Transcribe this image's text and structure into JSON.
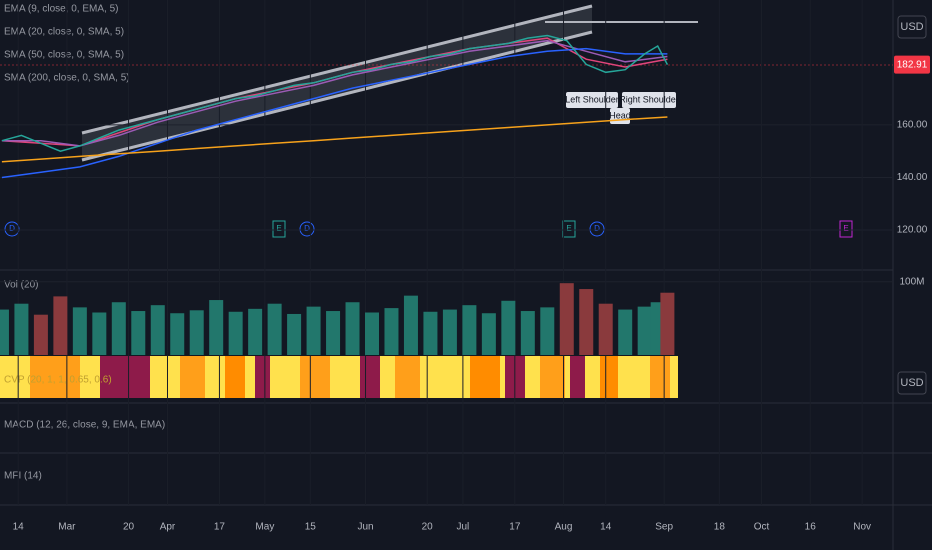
{
  "chart_data": {
    "type": "line",
    "indicator_labels": [
      "EMA (9, close, 0, EMA, 5)",
      "EMA (20, close, 0, SMA, 5)",
      "SMA (50, close, 0, SMA, 5)",
      "SMA (200, close, 0, SMA, 5)"
    ],
    "price": {
      "color": "#26a69a",
      "last_color": "#f23645",
      "x": [
        40,
        46,
        52,
        58,
        64,
        70,
        76,
        82,
        88,
        94,
        100,
        106,
        112,
        118,
        124,
        130,
        136,
        142,
        148,
        154,
        160,
        166,
        172,
        178,
        184,
        190,
        196,
        202,
        208,
        214,
        220,
        226,
        232,
        238,
        242,
        245
      ],
      "values": [
        154,
        156,
        153,
        150,
        152,
        155,
        158,
        160,
        162,
        164,
        166,
        168,
        170,
        171,
        173,
        175,
        176,
        178,
        180,
        181,
        183,
        184,
        186,
        187,
        189,
        190,
        191,
        193,
        194,
        192,
        183,
        180,
        181,
        187,
        190,
        182.91
      ]
    },
    "series": [
      {
        "name": "EMA (9, close, 0, EMA, 5)",
        "color": "#e0457b",
        "x": [
          40,
          52,
          64,
          76,
          88,
          100,
          112,
          124,
          136,
          148,
          160,
          172,
          184,
          196,
          208,
          220,
          232,
          245
        ],
        "values": [
          154,
          153,
          152,
          157,
          162,
          166,
          170,
          173,
          176,
          180,
          183,
          186,
          189,
          191,
          193,
          185,
          182,
          185
        ]
      },
      {
        "name": "EMA (20, close, 0, SMA, 5)",
        "color": "#9c5bb5",
        "x": [
          40,
          52,
          64,
          76,
          88,
          100,
          112,
          124,
          136,
          148,
          160,
          172,
          184,
          196,
          208,
          220,
          232,
          245
        ],
        "values": [
          154,
          154,
          152,
          156,
          161,
          165,
          169,
          172,
          175,
          179,
          182,
          185,
          188,
          190,
          192,
          188,
          184,
          186
        ]
      },
      {
        "name": "SMA (50, close, 0, SMA, 5)",
        "color": "#2962ff",
        "x": [
          40,
          52,
          64,
          76,
          88,
          100,
          112,
          124,
          136,
          148,
          160,
          172,
          184,
          196,
          208,
          220,
          232,
          245
        ],
        "values": [
          140,
          142,
          144,
          148,
          153,
          158,
          162,
          166,
          170,
          174,
          177,
          180,
          183,
          186,
          188,
          189,
          187,
          187
        ]
      },
      {
        "name": "SMA (200, close, 0, SMA, 5)",
        "color": "#f7a21b",
        "x": [
          40,
          52,
          64,
          76,
          88,
          100,
          112,
          124,
          136,
          148,
          160,
          172,
          184,
          196,
          208,
          220,
          232,
          245
        ],
        "values": [
          146,
          147,
          148,
          149,
          150,
          151,
          152,
          153,
          154,
          155,
          156,
          157,
          158,
          159,
          160,
          161,
          162,
          163
        ]
      }
    ],
    "ylim": [
      104.8,
      207.5
    ],
    "yticks": [
      {
        "value": 120,
        "label": "120.00"
      },
      {
        "value": 140,
        "label": "140.00"
      },
      {
        "value": 160,
        "label": "160.00"
      }
    ],
    "xlim": [
      39.4,
      314.5
    ],
    "xticks": [
      {
        "value": 45,
        "label": "14"
      },
      {
        "value": 60,
        "label": "Mar"
      },
      {
        "value": 79,
        "label": "20"
      },
      {
        "value": 91,
        "label": "Apr"
      },
      {
        "value": 107,
        "label": "17"
      },
      {
        "value": 121,
        "label": "May"
      },
      {
        "value": 135,
        "label": "15"
      },
      {
        "value": 152,
        "label": "Jun"
      },
      {
        "value": 171,
        "label": "20"
      },
      {
        "value": 182,
        "label": "Jul"
      },
      {
        "value": 198,
        "label": "17"
      },
      {
        "value": 213,
        "label": "Aug"
      },
      {
        "value": 226,
        "label": "14"
      },
      {
        "value": 244,
        "label": "Sep"
      },
      {
        "value": 261,
        "label": "18"
      },
      {
        "value": 274,
        "label": "Oct"
      },
      {
        "value": 289,
        "label": "16"
      },
      {
        "value": 305,
        "label": "Nov"
      }
    ],
    "volume": {
      "label": "Vol (20)",
      "up_color": "#22776c",
      "down_color": "#8a3a3d",
      "values": [
        62000000,
        70000000,
        55000000,
        80000000,
        65000000,
        58000000,
        72000000,
        60000000,
        68000000,
        57000000,
        61000000,
        75000000,
        59000000,
        63000000,
        70000000,
        56000000,
        66000000,
        60000000,
        72000000,
        58000000,
        64000000,
        81000000,
        59000000,
        62000000,
        68000000,
        57000000,
        74000000,
        60000000,
        65000000,
        98000000,
        90000000,
        70000000,
        62000000,
        66000000,
        72000000,
        85000000
      ]
    },
    "vol_ylim": [
      0,
      116000000
    ],
    "vol_yticks": [
      {
        "value": 100000000,
        "label": "100M"
      }
    ],
    "band_label": "CVP (20, 1, 1, 0.65, 0.6)",
    "macd_label": "MACD (12, 26, close, 9, EMA, EMA)",
    "mfi_label": "MFI (14)",
    "currency_labels": [
      "USD",
      "USD"
    ],
    "pattern_labels": [
      "Left Shoulder",
      "Head",
      "Right Shoulder"
    ],
    "event_markers": [
      "D",
      "E",
      "D",
      "E",
      "D",
      "E"
    ]
  }
}
